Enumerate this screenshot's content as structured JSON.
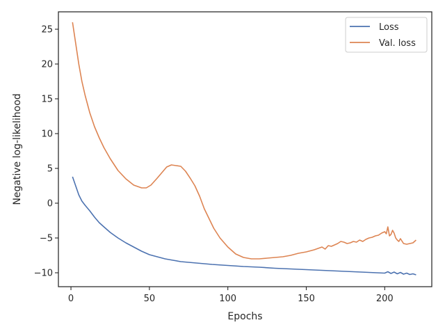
{
  "chart_data": {
    "type": "line",
    "xlabel": "Epochs",
    "ylabel": "Negative log-likelihood",
    "xlim": [
      -8,
      230
    ],
    "ylim": [
      -12,
      27.5
    ],
    "xticks": [
      0,
      50,
      100,
      150,
      200
    ],
    "yticks": [
      -10,
      -5,
      0,
      5,
      10,
      15,
      20,
      25
    ],
    "grid": false,
    "legend_position": "top-right",
    "series": [
      {
        "name": "Loss",
        "color": "#4c72b0",
        "x": [
          1,
          3,
          5,
          7,
          9,
          12,
          15,
          18,
          21,
          25,
          30,
          35,
          40,
          45,
          50,
          55,
          60,
          65,
          70,
          75,
          80,
          90,
          100,
          110,
          120,
          130,
          140,
          150,
          160,
          170,
          175,
          180,
          185,
          190,
          195,
          200,
          202,
          204,
          206,
          208,
          210,
          212,
          214,
          216,
          218,
          220
        ],
        "y": [
          3.8,
          2.5,
          1.2,
          0.3,
          -0.3,
          -1.1,
          -2.0,
          -2.8,
          -3.4,
          -4.2,
          -5.0,
          -5.7,
          -6.3,
          -6.9,
          -7.4,
          -7.7,
          -8.0,
          -8.2,
          -8.4,
          -8.5,
          -8.6,
          -8.8,
          -8.95,
          -9.1,
          -9.2,
          -9.35,
          -9.45,
          -9.55,
          -9.65,
          -9.75,
          -9.8,
          -9.85,
          -9.9,
          -9.95,
          -10.0,
          -10.05,
          -9.85,
          -10.1,
          -9.9,
          -10.15,
          -9.95,
          -10.2,
          -10.05,
          -10.25,
          -10.15,
          -10.3
        ]
      },
      {
        "name": "Val. loss",
        "color": "#dd8452",
        "x": [
          1,
          3,
          5,
          7,
          9,
          12,
          15,
          18,
          21,
          25,
          30,
          35,
          40,
          45,
          48,
          51,
          55,
          58,
          61,
          64,
          67,
          70,
          73,
          76,
          79,
          82,
          85,
          88,
          91,
          95,
          100,
          105,
          110,
          115,
          120,
          125,
          130,
          135,
          140,
          145,
          150,
          155,
          160,
          162,
          164,
          166,
          168,
          170,
          172,
          174,
          176,
          178,
          180,
          182,
          184,
          186,
          188,
          190,
          192,
          194,
          196,
          198,
          200,
          201,
          202,
          203,
          204,
          205,
          206,
          207,
          208,
          209,
          210,
          212,
          214,
          216,
          218,
          220
        ],
        "y": [
          26.0,
          23.0,
          20.0,
          17.5,
          15.5,
          13.0,
          11.0,
          9.4,
          8.0,
          6.4,
          4.7,
          3.5,
          2.6,
          2.2,
          2.2,
          2.6,
          3.6,
          4.4,
          5.2,
          5.5,
          5.4,
          5.3,
          4.6,
          3.6,
          2.5,
          1.0,
          -0.8,
          -2.2,
          -3.6,
          -5.0,
          -6.3,
          -7.3,
          -7.8,
          -8.0,
          -8.0,
          -7.9,
          -7.8,
          -7.7,
          -7.5,
          -7.2,
          -7.0,
          -6.7,
          -6.3,
          -6.6,
          -6.1,
          -6.2,
          -6.0,
          -5.8,
          -5.5,
          -5.6,
          -5.8,
          -5.7,
          -5.5,
          -5.6,
          -5.3,
          -5.5,
          -5.2,
          -5.0,
          -4.9,
          -4.7,
          -4.6,
          -4.3,
          -4.1,
          -4.4,
          -3.4,
          -4.7,
          -4.5,
          -3.9,
          -4.3,
          -5.0,
          -5.3,
          -5.5,
          -5.1,
          -5.8,
          -5.9,
          -5.8,
          -5.7,
          -5.3
        ]
      }
    ]
  }
}
